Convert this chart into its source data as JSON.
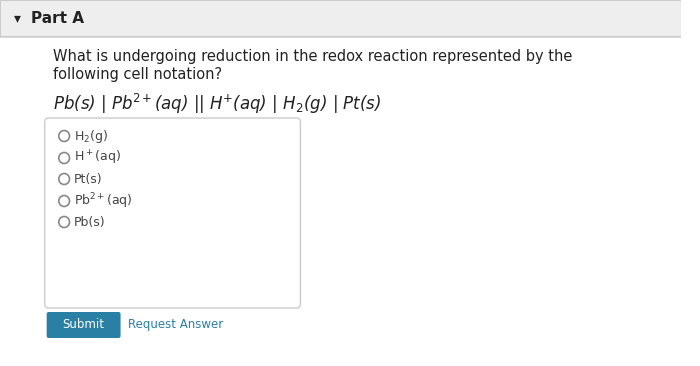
{
  "bg_color": "#f5f5f5",
  "white_bg": "#ffffff",
  "part_label": "Part A",
  "arrow": "▾",
  "question_line1": "What is undergoing reduction in the redox reaction represented by the",
  "question_line2": "following cell notation?",
  "cell_notation": "Pb(s) | Pb$^{2+}$(aq) || H$^{+}$(aq) | H$_2$(g) | Pt(s)",
  "options": [
    "H$_2$(g)",
    "H$^+$(aq)",
    "Pt(s)",
    "Pb$^{2+}$(aq)",
    "Pb(s)"
  ],
  "submit_label": "Submit",
  "submit_color": "#2a7fa5",
  "submit_text_color": "#ffffff",
  "request_label": "Request Answer",
  "request_color": "#2a7fa5",
  "separator_color": "#cccccc",
  "header_bg": "#eeeeee",
  "box_border_color": "#cccccc",
  "text_color": "#222222",
  "option_text_color": "#444444",
  "circle_color": "#888888",
  "title_fontsize": 11,
  "question_fontsize": 10.5,
  "option_fontsize": 9,
  "notation_fontsize": 12
}
